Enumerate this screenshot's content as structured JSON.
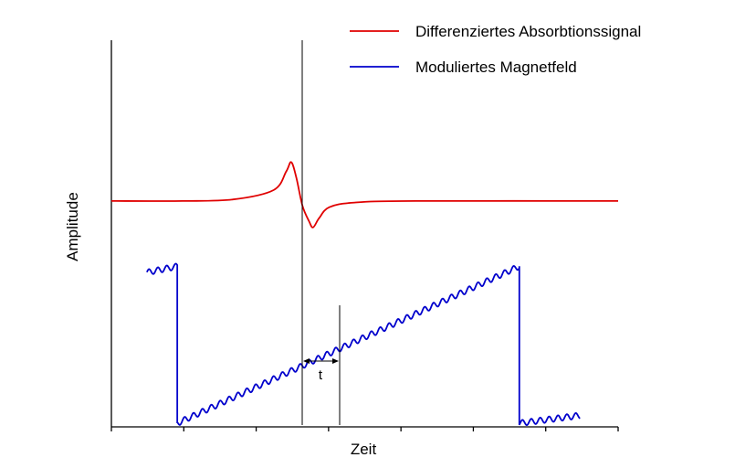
{
  "chart_data": {
    "type": "line",
    "xlabel": "Zeit",
    "ylabel": "Amplitude",
    "x_ticks": 8,
    "grid": false,
    "legend_position": "top-right",
    "annotations": [
      "t"
    ],
    "series": [
      {
        "name": "Differenziertes Absorbtionssignal",
        "color": "#e00000",
        "points": [
          [
            0.0,
            0.53
          ],
          [
            0.14,
            0.53
          ],
          [
            0.24,
            0.54
          ],
          [
            0.32,
            0.6
          ],
          [
            0.345,
            0.72
          ],
          [
            0.355,
            0.78
          ],
          [
            0.365,
            0.68
          ],
          [
            0.377,
            0.5
          ],
          [
            0.39,
            0.4
          ],
          [
            0.398,
            0.36
          ],
          [
            0.41,
            0.42
          ],
          [
            0.43,
            0.49
          ],
          [
            0.48,
            0.52
          ],
          [
            0.6,
            0.53
          ],
          [
            1.0,
            0.53
          ]
        ]
      },
      {
        "name": "Moduliertes Magnetfeld",
        "color": "#0000cc",
        "points": [
          [
            0.07,
            0.07
          ],
          [
            0.13,
            0.11
          ],
          [
            0.13,
            -0.9
          ],
          [
            0.805,
            0.11
          ],
          [
            0.805,
            -0.9
          ],
          [
            0.925,
            -0.85
          ]
        ],
        "modulation": "sinusoidal"
      }
    ]
  },
  "legend": {
    "items": [
      {
        "label": "Differenziertes Absorbtionssignal",
        "color": "#e00000"
      },
      {
        "label": "Moduliertes Magnetfeld",
        "color": "#0000cc"
      }
    ]
  },
  "axes": {
    "xlabel": "Zeit",
    "ylabel": "Amplitude"
  },
  "annotation": {
    "label": "t"
  }
}
